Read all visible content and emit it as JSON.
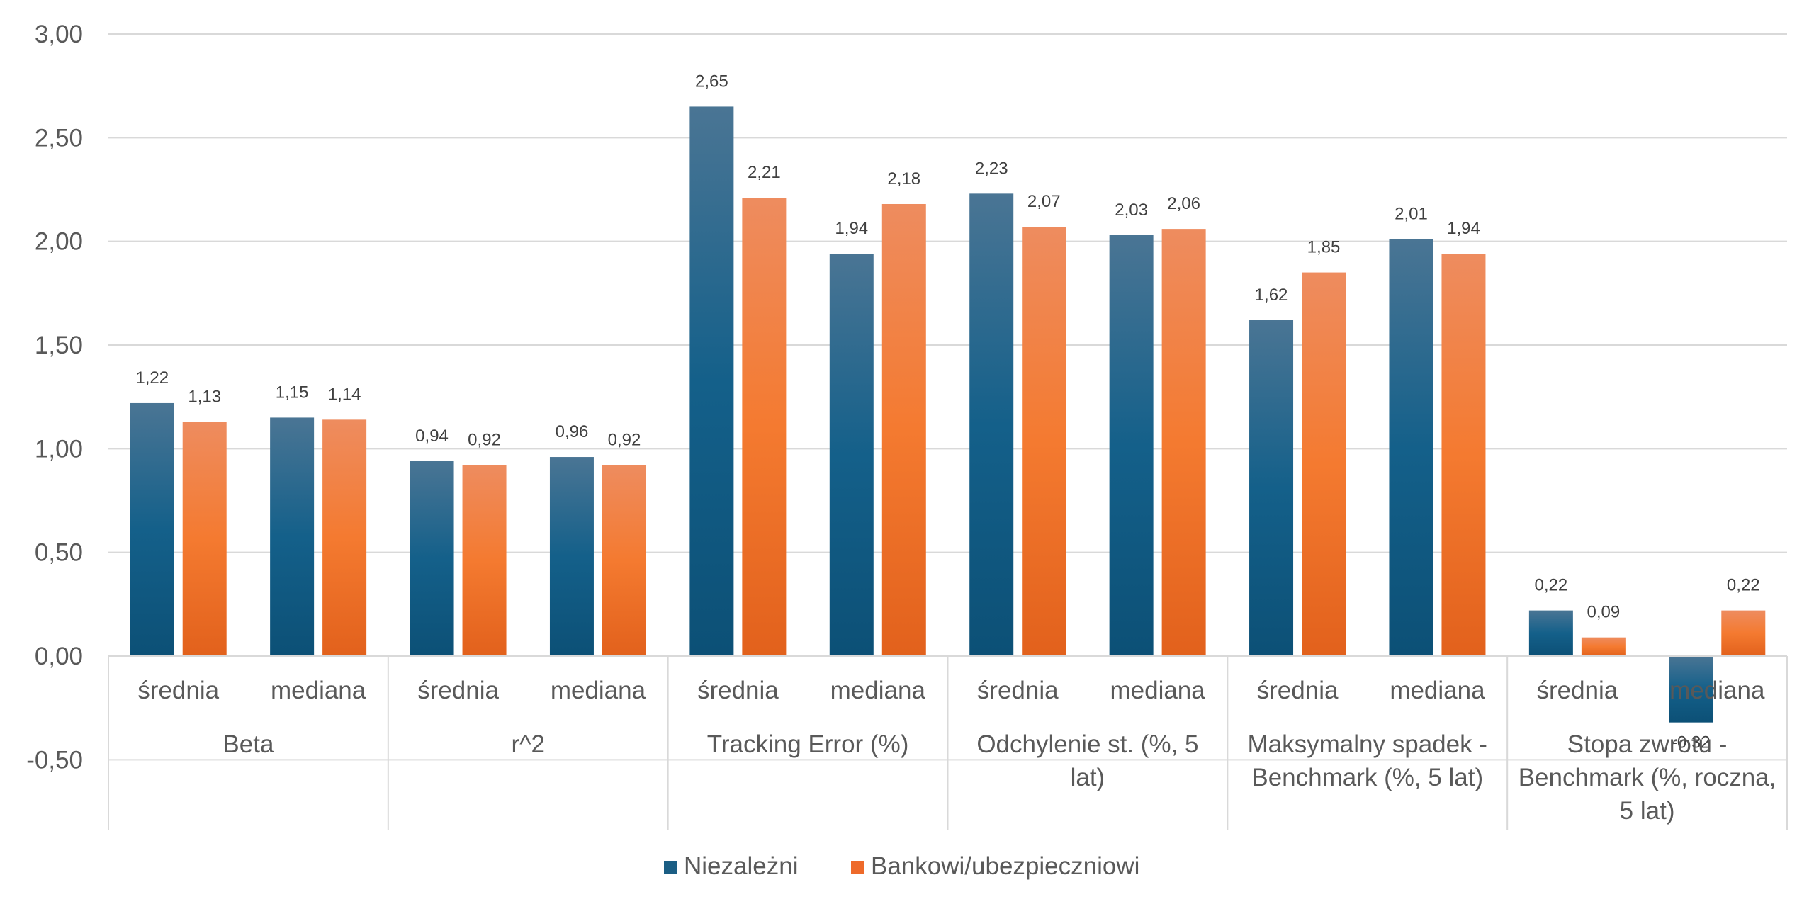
{
  "chart_data": {
    "type": "bar",
    "title": "",
    "xlabel": "",
    "ylabel": "",
    "ylim": [
      -0.5,
      3.0
    ],
    "yticks": [
      "3,00",
      "2,50",
      "2,00",
      "1,50",
      "1,00",
      "0,50",
      "0,00",
      "-0,50"
    ],
    "ytick_values": [
      3.0,
      2.5,
      2.0,
      1.5,
      1.0,
      0.5,
      0.0,
      -0.5
    ],
    "grid": true,
    "legend_position": "bottom",
    "groups": [
      {
        "label": [
          "Beta"
        ],
        "subcategories": [
          "średnia",
          "mediana"
        ]
      },
      {
        "label": [
          "r^2"
        ],
        "subcategories": [
          "średnia",
          "mediana"
        ]
      },
      {
        "label": [
          "Tracking Error (%)"
        ],
        "subcategories": [
          "średnia",
          "mediana"
        ]
      },
      {
        "label": [
          "Odchylenie st. (%, 5",
          "lat)"
        ],
        "subcategories": [
          "średnia",
          "mediana"
        ]
      },
      {
        "label": [
          "Maksymalny spadek -",
          "Benchmark (%, 5 lat)"
        ],
        "subcategories": [
          "średnia",
          "mediana"
        ]
      },
      {
        "label": [
          "Stopa zwrotu -",
          "Benchmark (%, roczna,",
          "5 lat)"
        ],
        "subcategories": [
          "średnia",
          "mediana"
        ]
      }
    ],
    "series": [
      {
        "name": "Niezależni",
        "color": "#1B5E84",
        "values": [
          1.22,
          1.15,
          0.94,
          0.96,
          2.65,
          1.94,
          2.23,
          2.03,
          1.62,
          2.01,
          0.22,
          -0.32
        ],
        "labels": [
          "1,22",
          "1,15",
          "0,94",
          "0,96",
          "2,65",
          "1,94",
          "2,23",
          "2,03",
          "1,62",
          "2,01",
          "0,22",
          "-0,32"
        ]
      },
      {
        "name": "Bankowi/ubezpieczniowi",
        "color": "#EE6A2A",
        "values": [
          1.13,
          1.14,
          0.92,
          0.92,
          2.21,
          2.18,
          2.07,
          2.06,
          1.85,
          1.94,
          0.09,
          0.22
        ],
        "labels": [
          "1,13",
          "1,14",
          "0,92",
          "0,92",
          "2,21",
          "2,18",
          "2,07",
          "2,06",
          "1,85",
          "1,94",
          "0,09",
          "0,22"
        ]
      }
    ]
  }
}
